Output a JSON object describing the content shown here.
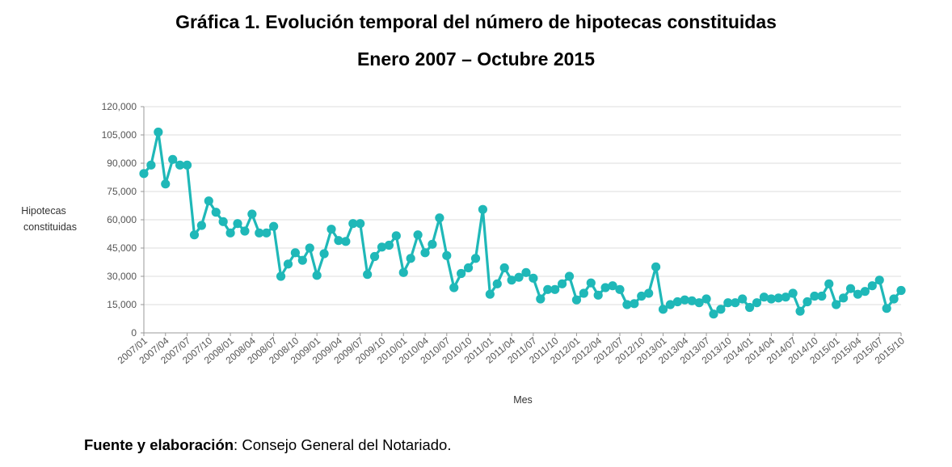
{
  "title": "Gráfica 1. Evolución temporal del número de hipotecas constituidas",
  "subtitle": "Enero 2007 – Octubre 2015",
  "source": {
    "label": "Fuente y elaboración",
    "sep": ":",
    "text": " Consejo General del Notariado."
  },
  "colors": {
    "series": "#1fb8b8",
    "grid": "#dcdcdc",
    "axis": "#999999"
  },
  "chart_data": {
    "type": "line",
    "title": "Gráfica 1. Evolución temporal del número de hipotecas constituidas",
    "subtitle": "Enero 2007 – Octubre 2015",
    "xlabel": "Mes",
    "ylabel_lines": [
      "Hipotecas",
      "constituidas"
    ],
    "ylim": [
      0,
      120000
    ],
    "yticks": [
      0,
      15000,
      30000,
      45000,
      60000,
      75000,
      90000,
      105000,
      120000
    ],
    "ytick_labels": [
      "0",
      "15,000",
      "30,000",
      "45,000",
      "60,000",
      "75,000",
      "90,000",
      "105,000",
      "120,000"
    ],
    "xtick_labels": [
      "2007/01",
      "2007/04",
      "2007/07",
      "2007/10",
      "2008/01",
      "2008/04",
      "2008/07",
      "2008/10",
      "2009/01",
      "2009/04",
      "2009/07",
      "2009/10",
      "2010/01",
      "2010/04",
      "2010/07",
      "2010/10",
      "2011/01",
      "2011/04",
      "2011/07",
      "2011/10",
      "2012/01",
      "2012/04",
      "2012/07",
      "2012/10",
      "2013/01",
      "2013/04",
      "2013/07",
      "2013/10",
      "2014/01",
      "2014/04",
      "2014/07",
      "2014/10",
      "2015/01",
      "2015/04",
      "2015/07",
      "2015/10"
    ],
    "series": [
      {
        "name": "Hipotecas constituidas",
        "values": [
          84500,
          89000,
          106500,
          79000,
          92000,
          89000,
          89000,
          52000,
          57000,
          70000,
          64000,
          59000,
          53000,
          58000,
          54000,
          63000,
          53000,
          53000,
          56500,
          30000,
          36500,
          42500,
          38500,
          45000,
          30500,
          42000,
          55000,
          49000,
          48500,
          58000,
          58000,
          31000,
          40500,
          45500,
          46500,
          51500,
          32000,
          39500,
          52000,
          42500,
          47000,
          61000,
          41000,
          24000,
          31500,
          34500,
          39500,
          65500,
          20500,
          26000,
          34500,
          28000,
          29500,
          32000,
          29000,
          18000,
          23000,
          23000,
          26000,
          30000,
          17500,
          21000,
          26500,
          20000,
          24000,
          25000,
          23000,
          15000,
          15500,
          19500,
          21000,
          35000,
          12500,
          15000,
          16500,
          17500,
          17000,
          16000,
          18000,
          10000,
          12500,
          16000,
          16000,
          18000,
          13500,
          16000,
          19000,
          18000,
          18500,
          19000,
          21000,
          11500,
          16500,
          19500,
          19500,
          26000,
          15000,
          18500,
          23500,
          20500,
          22000,
          25000,
          28000,
          13000,
          18000,
          22500
        ]
      }
    ]
  }
}
